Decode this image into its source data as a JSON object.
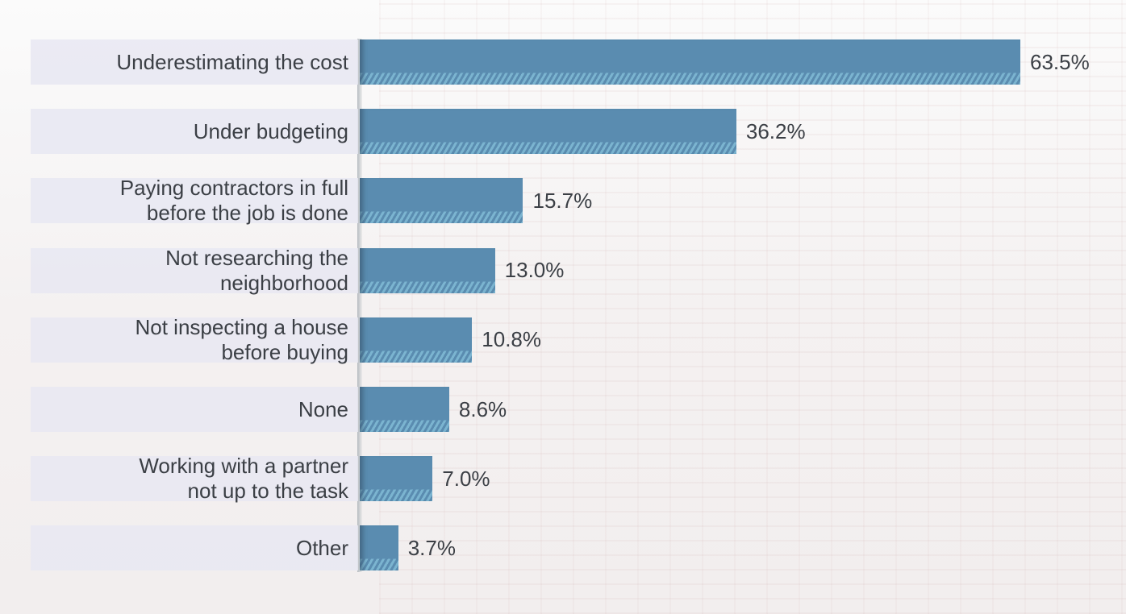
{
  "chart_data": {
    "type": "bar",
    "orientation": "horizontal",
    "categories": [
      "Underestimating the cost",
      "Under budgeting",
      "Paying contractors in full before the job is done",
      "Not researching the neighborhood",
      "Not inspecting a house before buying",
      "None",
      "Working with a partner not up to the task",
      "Other"
    ],
    "values": [
      63.5,
      36.2,
      15.7,
      13.0,
      10.8,
      8.6,
      7.0,
      3.7
    ],
    "value_labels": [
      "63.5%",
      "36.2%",
      "15.7%",
      "13.0%",
      "10.8%",
      "8.6%",
      "7.0%",
      "3.7%"
    ],
    "xlim": [
      0,
      63.5
    ],
    "grid": false,
    "bar_color": "#5a8cb0",
    "accent_color": "#7bb4d0"
  }
}
